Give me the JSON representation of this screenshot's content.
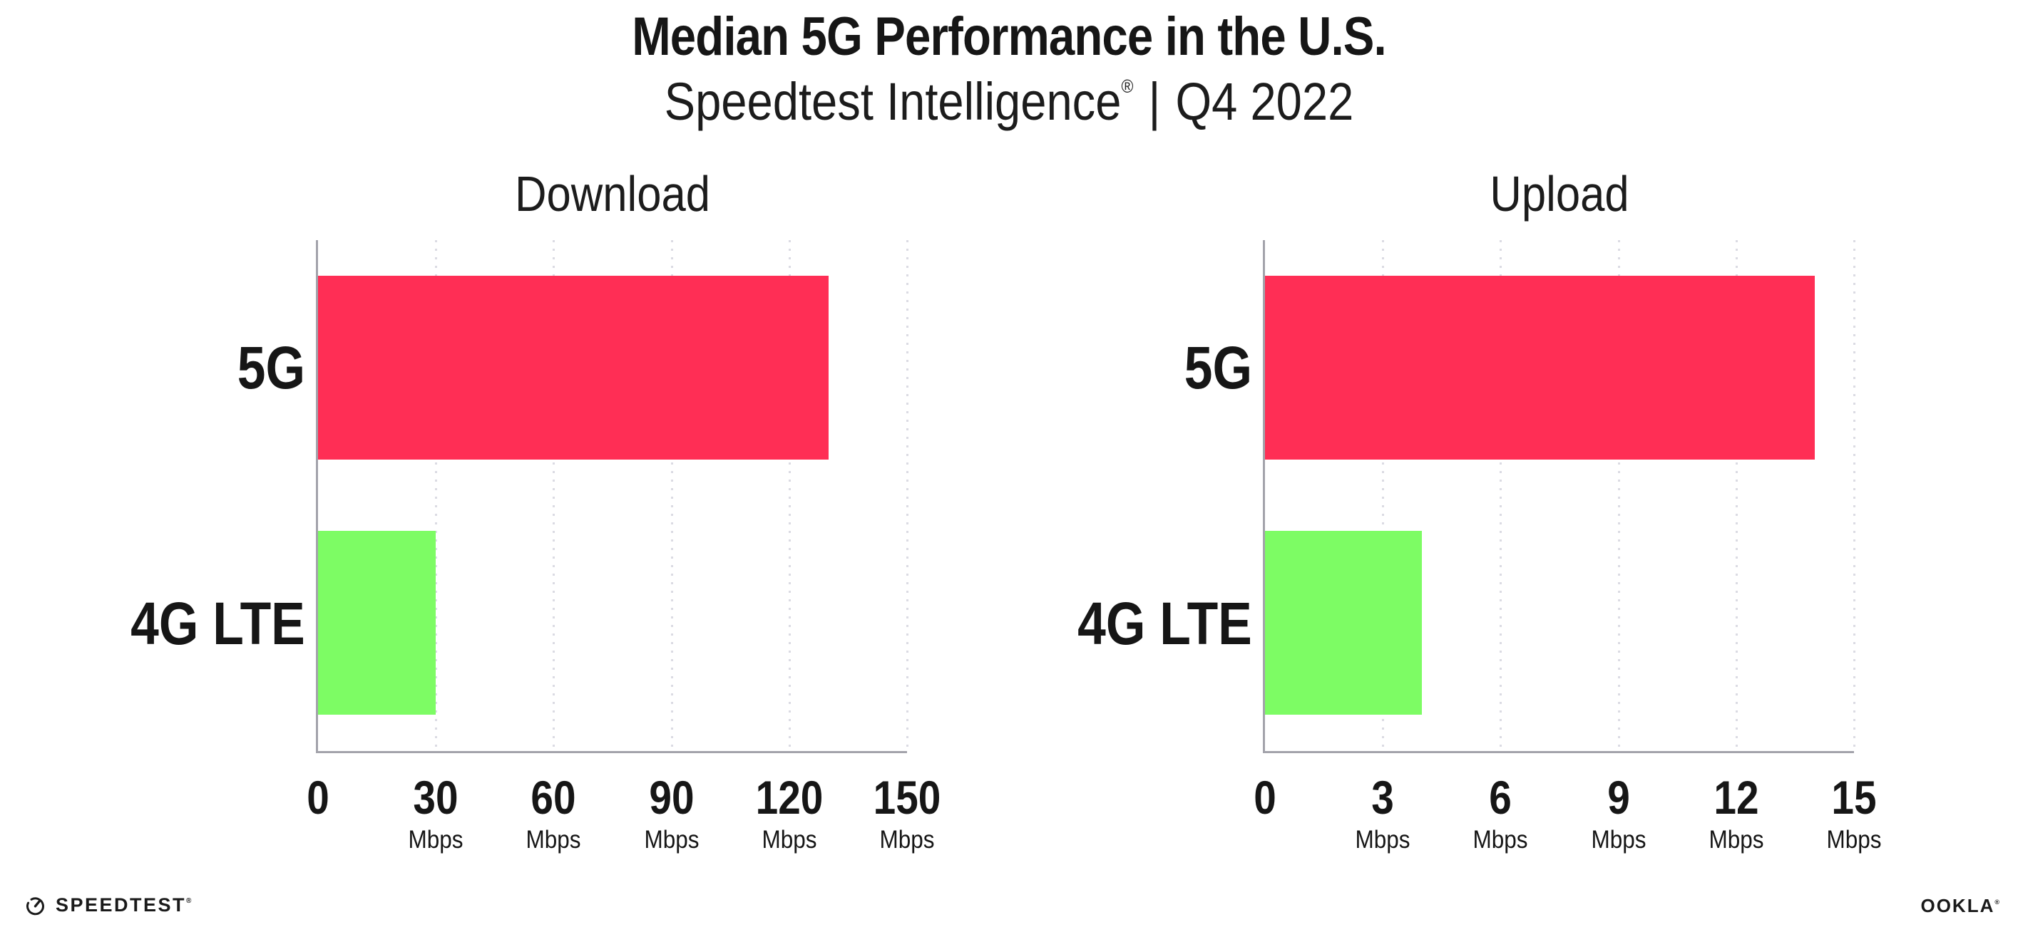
{
  "header": {
    "title": "Median 5G Performance in the U.S.",
    "subtitle_brand": "Speedtest Intelligence",
    "subtitle_reg": "®",
    "subtitle_separator": "|",
    "subtitle_period": "Q4 2022"
  },
  "chart_data": [
    {
      "type": "bar",
      "orientation": "horizontal",
      "title": "Download",
      "categories": [
        "5G",
        "4G LTE"
      ],
      "values": [
        130,
        30
      ],
      "unit": "Mbps",
      "xlim": [
        0,
        150
      ],
      "ticks": [
        0,
        30,
        60,
        90,
        120,
        150
      ],
      "tick_labels": [
        {
          "value": "0",
          "unit": ""
        },
        {
          "value": "30",
          "unit": "Mbps"
        },
        {
          "value": "60",
          "unit": "Mbps"
        },
        {
          "value": "90",
          "unit": "Mbps"
        },
        {
          "value": "120",
          "unit": "Mbps"
        },
        {
          "value": "150",
          "unit": "Mbps"
        }
      ],
      "bar_colors": [
        "#FF2E55",
        "#7DFC64"
      ],
      "grid": "dotted-vertical",
      "legend": "none"
    },
    {
      "type": "bar",
      "orientation": "horizontal",
      "title": "Upload",
      "categories": [
        "5G",
        "4G LTE"
      ],
      "values": [
        14,
        4
      ],
      "unit": "Mbps",
      "xlim": [
        0,
        15
      ],
      "ticks": [
        0,
        3,
        6,
        9,
        12,
        15
      ],
      "tick_labels": [
        {
          "value": "0",
          "unit": ""
        },
        {
          "value": "3",
          "unit": "Mbps"
        },
        {
          "value": "6",
          "unit": "Mbps"
        },
        {
          "value": "9",
          "unit": "Mbps"
        },
        {
          "value": "12",
          "unit": "Mbps"
        },
        {
          "value": "15",
          "unit": "Mbps"
        }
      ],
      "bar_colors": [
        "#FF2E55",
        "#7DFC64"
      ],
      "grid": "dotted-vertical",
      "legend": "none"
    }
  ],
  "footer": {
    "speedtest_label": "SPEEDTEST",
    "speedtest_reg": "®",
    "ookla_label": "OOKLA",
    "ookla_reg": "®"
  },
  "colors": {
    "bar_5g": "#FF2E55",
    "bar_4g_lte": "#7DFC64",
    "axis_line": "#A3A3AB",
    "gridline": "#DBDBE3",
    "text": "#161616",
    "background": "#FFFFFF"
  }
}
